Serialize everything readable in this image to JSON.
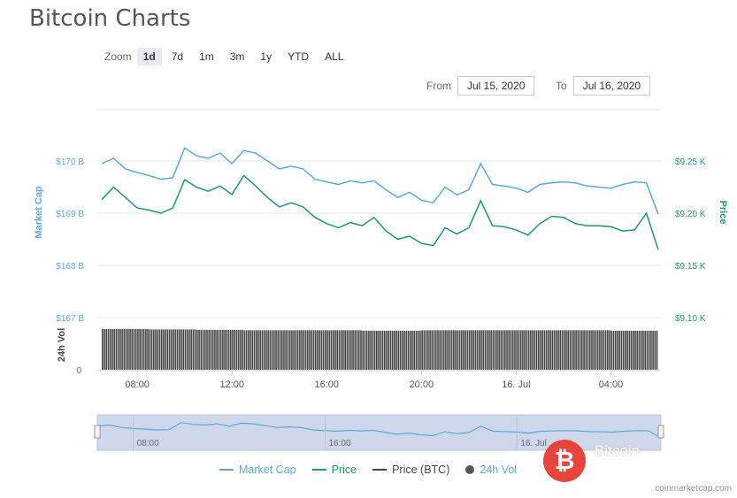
{
  "page": {
    "title": "Bitcoin Charts"
  },
  "zoom": {
    "label": "Zoom",
    "buttons": [
      "1d",
      "7d",
      "1m",
      "3m",
      "1y",
      "YTD",
      "ALL"
    ],
    "active": "1d"
  },
  "range": {
    "from_label": "From",
    "from_value": "Jul 15, 2020",
    "to_label": "To",
    "to_value": "Jul 16, 2020"
  },
  "legend": {
    "market_cap": "Market Cap",
    "price": "Price",
    "price_btc": "Price (BTC)",
    "volume": "24h Vol"
  },
  "source": "coinmarketcap.com",
  "watermark": {
    "symbol": "₿",
    "text": "Bitcoin"
  },
  "colors": {
    "market_cap": "#5aa9e0",
    "price": "#1a9a6c",
    "volume": "#444444",
    "navigator": "#cfd8ea"
  },
  "chart_data": {
    "type": "line",
    "title": "",
    "x_ticks": [
      "08:00",
      "12:00",
      "16:00",
      "20:00",
      "16. Jul",
      "04:00"
    ],
    "navigator_ticks": [
      "08:00",
      "16:00",
      "16. Jul"
    ],
    "left_axis": {
      "label": "Market Cap",
      "ticks": [
        "$170 B",
        "$169 B",
        "$168 B",
        "$167 B"
      ],
      "range": [
        167,
        171
      ]
    },
    "right_axis": {
      "label": "Price",
      "ticks": [
        "$9.25 K",
        "$9.20 K",
        "$9.15 K",
        "$9.10 K"
      ],
      "range": [
        9.1,
        9.3
      ]
    },
    "volume_axis": {
      "label": "24h Vol",
      "ticks": [
        "0"
      ]
    },
    "x": [
      "06:30",
      "07:00",
      "07:30",
      "08:00",
      "08:30",
      "09:00",
      "09:30",
      "10:00",
      "10:30",
      "11:00",
      "11:30",
      "12:00",
      "12:30",
      "13:00",
      "13:30",
      "14:00",
      "14:30",
      "15:00",
      "15:30",
      "16:00",
      "16:30",
      "17:00",
      "17:30",
      "18:00",
      "18:30",
      "19:00",
      "19:30",
      "20:00",
      "20:30",
      "21:00",
      "21:30",
      "22:00",
      "22:30",
      "23:00",
      "23:30",
      "00:00",
      "00:30",
      "01:00",
      "01:30",
      "02:00",
      "02:30",
      "03:00",
      "03:30",
      "04:00",
      "04:30",
      "05:00",
      "05:30",
      "06:00"
    ],
    "series": [
      {
        "name": "Market Cap",
        "axis": "left",
        "values": [
          169.95,
          170.05,
          169.85,
          169.78,
          169.72,
          169.65,
          169.68,
          170.25,
          170.1,
          170.05,
          170.15,
          169.95,
          170.2,
          170.15,
          170.0,
          169.85,
          169.9,
          169.85,
          169.65,
          169.6,
          169.55,
          169.62,
          169.58,
          169.62,
          169.45,
          169.3,
          169.4,
          169.25,
          169.2,
          169.5,
          169.35,
          169.45,
          169.95,
          169.55,
          169.52,
          169.48,
          169.4,
          169.55,
          169.58,
          169.6,
          169.58,
          169.52,
          169.5,
          169.48,
          169.55,
          169.6,
          169.58,
          168.98
        ]
      },
      {
        "name": "Price",
        "axis": "right",
        "values": [
          9.213,
          9.225,
          9.215,
          9.205,
          9.203,
          9.2,
          9.205,
          9.232,
          9.225,
          9.221,
          9.226,
          9.218,
          9.236,
          9.226,
          9.215,
          9.206,
          9.21,
          9.206,
          9.196,
          9.19,
          9.186,
          9.191,
          9.188,
          9.196,
          9.183,
          9.175,
          9.178,
          9.171,
          9.169,
          9.186,
          9.18,
          9.186,
          9.212,
          9.188,
          9.187,
          9.184,
          9.179,
          9.19,
          9.197,
          9.196,
          9.19,
          9.188,
          9.188,
          9.187,
          9.183,
          9.184,
          9.2,
          9.165
        ]
      },
      {
        "name": "24h Vol",
        "axis": "volume",
        "values": [
          0.98,
          0.98,
          0.98,
          0.98,
          0.97,
          0.97,
          0.97,
          0.97,
          0.96,
          0.96,
          0.96,
          0.96,
          0.95,
          0.95,
          0.95,
          0.95,
          0.95,
          0.95,
          0.95,
          0.95,
          0.95,
          0.95,
          0.94,
          0.94,
          0.94,
          0.94,
          0.94,
          0.95,
          0.95,
          0.95,
          0.95,
          0.95,
          0.95,
          0.95,
          0.95,
          0.95,
          0.95,
          0.95,
          0.95,
          0.95,
          0.95,
          0.95,
          0.95,
          0.94,
          0.94,
          0.94,
          0.94,
          0.96
        ]
      }
    ]
  }
}
